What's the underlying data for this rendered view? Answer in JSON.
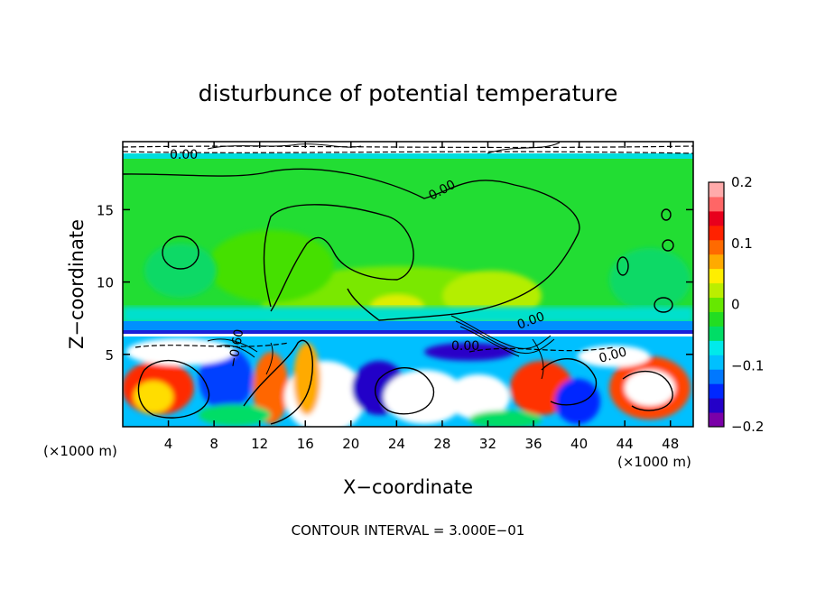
{
  "chart_data": {
    "type": "heatmap",
    "title": "disturbunce of potential temperature",
    "xlabel": "X−coordinate",
    "ylabel": "Z−coordinate",
    "x_unit_left": "(×1000 m)",
    "x_unit_right": "(×1000 m)",
    "xlim": [
      0,
      50
    ],
    "ylim": [
      0,
      19.7
    ],
    "x_ticks": [
      4,
      8,
      12,
      16,
      20,
      24,
      28,
      32,
      36,
      40,
      44,
      48
    ],
    "x_tick_labels": [
      "4",
      "8",
      "12",
      "16",
      "20",
      "24",
      "28",
      "32",
      "36",
      "40",
      "44",
      "48"
    ],
    "y_ticks": [
      5,
      10,
      15
    ],
    "y_tick_labels": [
      "5",
      "10",
      "15"
    ],
    "colorbar": {
      "range": [
        -0.2,
        0.2
      ],
      "ticks": [
        0.2,
        0.1,
        0,
        -0.1,
        -0.2
      ],
      "tick_labels": [
        "0.2",
        "0.1",
        "0",
        "−0.1",
        "−0.2"
      ],
      "colors": [
        "#7a00a8",
        "#2400c8",
        "#0028ff",
        "#0078ff",
        "#00c0ff",
        "#00eaea",
        "#00dd66",
        "#22dd22",
        "#66e800",
        "#bbee00",
        "#ffee00",
        "#ffaa00",
        "#ff6a00",
        "#ff2200",
        "#e8001c",
        "#ff6666",
        "#ffaaaa"
      ]
    },
    "contour_labels": [
      "0.00",
      "0.00",
      "0.00",
      "−0.60",
      "0.00",
      "0.00"
    ],
    "footer": "CONTOUR INTERVAL =  3.000E−01"
  }
}
